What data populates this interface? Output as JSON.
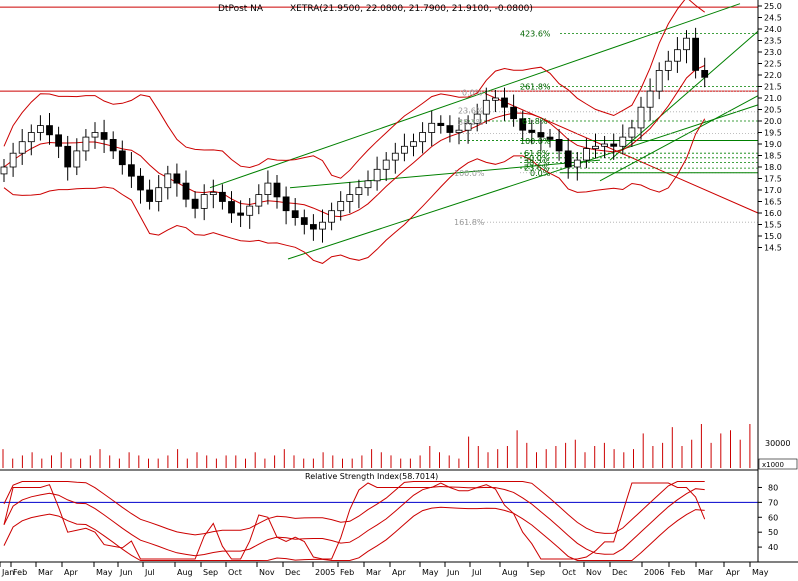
{
  "chart_data": [
    {
      "type": "candlestick",
      "title": "DtPost NA",
      "quote": "XETRA(21.9500, 22.0800, 21.7900, 21.9100, -0.0800)",
      "ylim": [
        14.0,
        25.0
      ],
      "y_ticks": [
        "14.5",
        "15.0",
        "15.5",
        "16.0",
        "16.5",
        "17.0",
        "17.5",
        "18.0",
        "18.5",
        "19.0",
        "19.5",
        "20.0",
        "20.5",
        "21.0",
        "21.5",
        "22.0",
        "22.5",
        "23.0",
        "23.5",
        "24.0",
        "24.5",
        "25.0"
      ],
      "x_ticks": [
        "Jan",
        "Feb",
        "Mar",
        "Apr",
        "May",
        "Jun",
        "Jul",
        "Aug",
        "Sep",
        "Oct",
        "Nov",
        "Dec",
        "2005",
        "Feb",
        "Mar",
        "Apr",
        "May",
        "Jun",
        "Jul",
        "Aug",
        "Sep",
        "Oct",
        "Nov",
        "Dec",
        "2006",
        "Feb",
        "Mar",
        "Apr",
        "May"
      ],
      "fib_labels": {
        "upper": [
          "423.6%",
          "261.8%",
          "0.0%",
          "23.6%",
          "38.2%",
          "61.8%",
          "100.0%"
        ],
        "lower": [
          "61.8%",
          "50.0%",
          "38.2%",
          "23.6%",
          "0.0%",
          "100.0%",
          "161.8%"
        ]
      },
      "colors": {
        "bollinger": "#cc0000",
        "channel": "#008000",
        "fib": "#008000",
        "faint": "#9a9a9a"
      },
      "close": [
        18.0,
        18.6,
        19.1,
        19.5,
        19.8,
        19.4,
        18.9,
        18.0,
        18.7,
        19.3,
        19.5,
        19.2,
        18.7,
        18.1,
        17.6,
        17.0,
        16.5,
        17.1,
        17.7,
        17.3,
        16.6,
        16.2,
        16.8,
        16.9,
        16.5,
        16.0,
        15.9,
        16.3,
        16.8,
        17.3,
        16.7,
        16.1,
        15.8,
        15.5,
        15.3,
        15.6,
        16.1,
        16.5,
        16.8,
        17.1,
        17.4,
        17.9,
        18.3,
        18.6,
        18.9,
        19.1,
        19.5,
        19.9,
        19.8,
        19.5,
        19.6,
        19.9,
        20.3,
        20.9,
        21.0,
        20.6,
        20.1,
        19.6,
        19.5,
        19.3,
        19.2,
        18.7,
        18.0,
        18.3,
        18.8,
        18.9,
        19.0,
        18.9,
        19.3,
        19.7,
        20.6,
        21.3,
        22.2,
        22.6,
        23.1,
        23.6,
        22.2,
        21.9
      ],
      "rsi_title": "Relative Strength Index(58.7014)",
      "rsi_last": 58.7014,
      "rsi_ylim": [
        30,
        85
      ],
      "rsi_ticks": [
        "40",
        "50",
        "60",
        "70",
        "80"
      ],
      "volume_tick": "30000",
      "volume_unit": "x1000",
      "volume": [
        6,
        3,
        4,
        5,
        3,
        4,
        5,
        3,
        3,
        4,
        6,
        4,
        3,
        5,
        4,
        3,
        3,
        4,
        6,
        3,
        5,
        4,
        3,
        4,
        4,
        3,
        5,
        3,
        4,
        6,
        4,
        3,
        3,
        5,
        4,
        3,
        3,
        4,
        6,
        5,
        4,
        3,
        3,
        4,
        7,
        5,
        4,
        3,
        10,
        7,
        5,
        6,
        7,
        12,
        8,
        5,
        6,
        7,
        8,
        9,
        5,
        7,
        8,
        6,
        5,
        6,
        11,
        7,
        8,
        13,
        7,
        9,
        14,
        8,
        11,
        12,
        9,
        14
      ]
    }
  ]
}
